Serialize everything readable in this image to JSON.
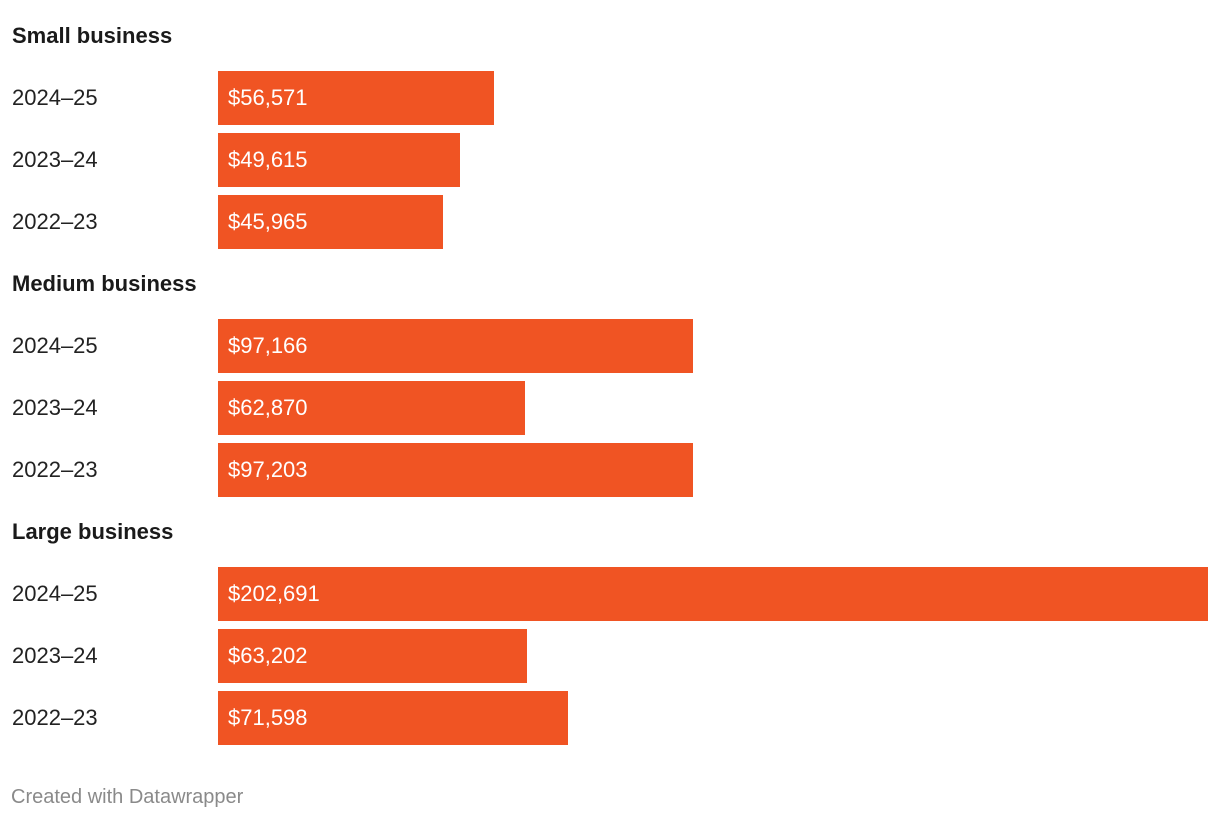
{
  "chart_data": {
    "type": "bar",
    "orientation": "horizontal",
    "bar_color": "#f05423",
    "value_label_color": "#ffffff",
    "groups": [
      {
        "name": "Small business",
        "rows": [
          {
            "category": "2024–25",
            "value": 56571,
            "label": "$56,571"
          },
          {
            "category": "2023–24",
            "value": 49615,
            "label": "$49,615"
          },
          {
            "category": "2022–23",
            "value": 45965,
            "label": "$45,965"
          }
        ]
      },
      {
        "name": "Medium business",
        "rows": [
          {
            "category": "2024–25",
            "value": 97166,
            "label": "$97,166"
          },
          {
            "category": "2023–24",
            "value": 62870,
            "label": "$62,870"
          },
          {
            "category": "2022–23",
            "value": 97203,
            "label": "$97,203"
          }
        ]
      },
      {
        "name": "Large business",
        "rows": [
          {
            "category": "2024–25",
            "value": 202691,
            "label": "$202,691"
          },
          {
            "category": "2023–24",
            "value": 63202,
            "label": "$63,202"
          },
          {
            "category": "2022–23",
            "value": 71598,
            "label": "$71,598"
          }
        ]
      }
    ],
    "xlim": [
      0,
      202691
    ],
    "grid": false
  },
  "footer": {
    "credit": "Created with Datawrapper"
  }
}
